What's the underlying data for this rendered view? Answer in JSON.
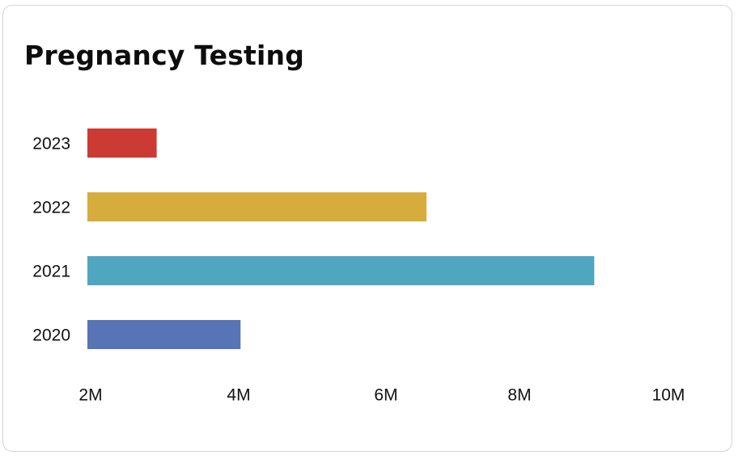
{
  "card": {
    "title": "Pregnancy Testing"
  },
  "chart_data": {
    "type": "bar",
    "orientation": "horizontal",
    "title": "Pregnancy Testing",
    "xlabel": "",
    "ylabel": "",
    "categories": [
      "2023",
      "2022",
      "2021",
      "2020"
    ],
    "values": [
      2950000,
      6650000,
      8950000,
      4100000
    ],
    "colors": [
      "#cc3b33",
      "#d6ad3c",
      "#4fa6c1",
      "#5674b6"
    ],
    "x_ticks": [
      "2M",
      "4M",
      "6M",
      "8M",
      "10M"
    ],
    "xlim": [
      2000000,
      10000000
    ],
    "grid": false,
    "legend": "none"
  }
}
